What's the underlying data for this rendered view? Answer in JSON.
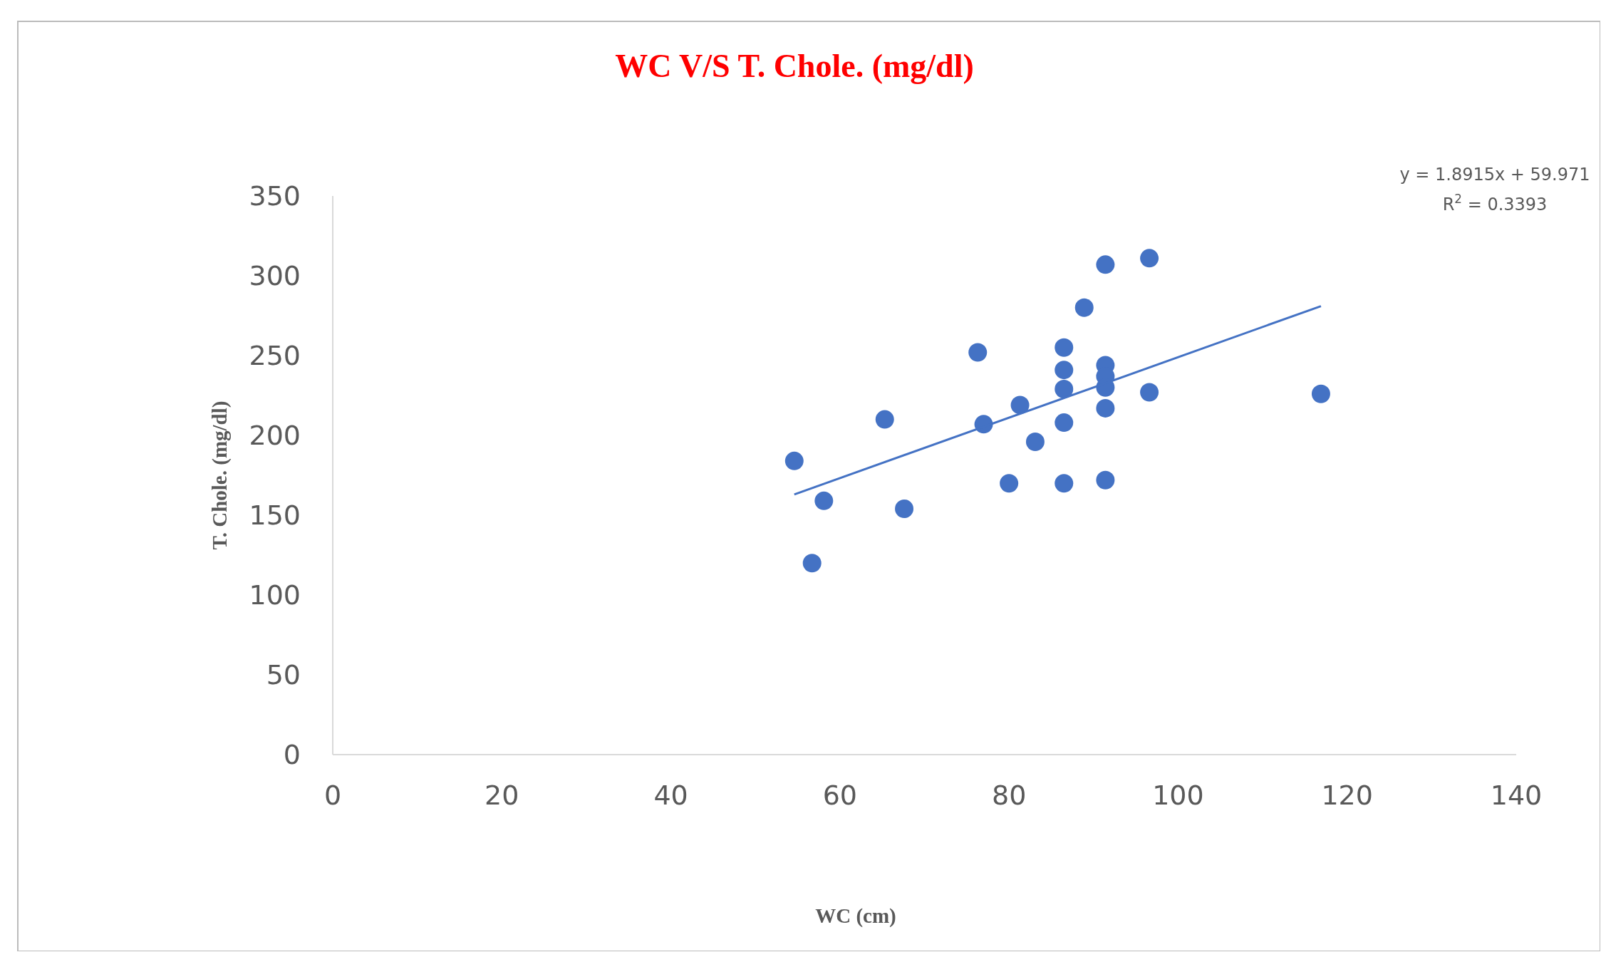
{
  "chart_data": {
    "type": "scatter",
    "title": "WC V/S T. Chole. (mg/dl)",
    "xlabel": "WC (cm)",
    "ylabel": "T. Chole. (mg/dl)",
    "xlim": [
      0,
      140
    ],
    "xticks": [
      0,
      20,
      40,
      60,
      80,
      100,
      120,
      140
    ],
    "ylim": [
      0,
      350
    ],
    "yticks": [
      0,
      50,
      100,
      150,
      200,
      250,
      300,
      350
    ],
    "grid": false,
    "marker": "circle",
    "annotations": [
      "y = 1.8915x + 59.971",
      "R$^{2}$ = 0.3393"
    ],
    "series": [
      {
        "color": "#4472c4",
        "x": [
          54.6,
          56.7,
          58.1,
          65.3,
          67.6,
          76.3,
          77,
          80,
          81.3,
          83.1,
          86.5,
          86.5,
          86.5,
          86.5,
          86.5,
          88.9,
          91.4,
          91.4,
          91.4,
          91.4,
          91.4,
          91.4,
          96.6,
          96.6,
          116.9
        ],
        "values": [
          184,
          120,
          159,
          210,
          154,
          252,
          207,
          170,
          219,
          196,
          255,
          241,
          229,
          208,
          170,
          280,
          307,
          244,
          237,
          230,
          217,
          172,
          311,
          227,
          226
        ]
      },
      {
        "type": "line",
        "color": "#4472c4",
        "x": [
          54.6,
          116.9
        ],
        "values": [
          163,
          281
        ],
        "marker": "none"
      }
    ]
  }
}
